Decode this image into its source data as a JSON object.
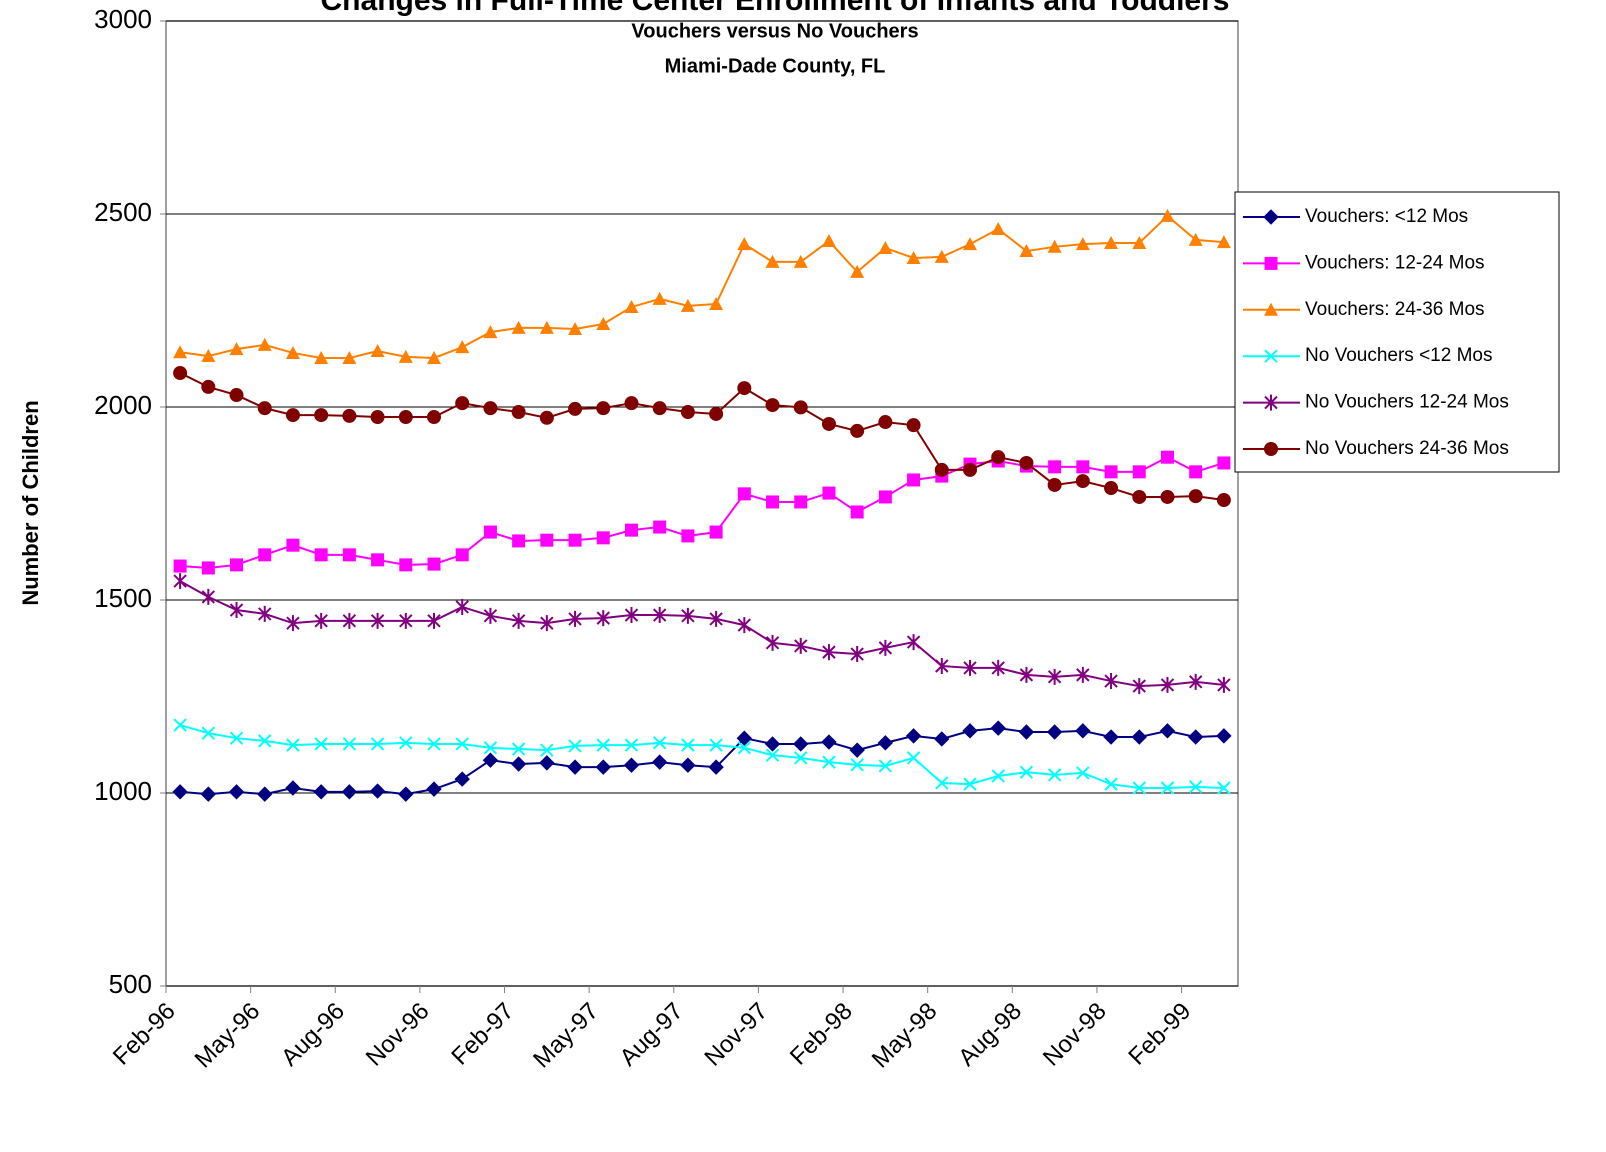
{
  "chart_data": {
    "type": "line",
    "title": "Changes in Full-Time Center Enrollment of Infants and Toddlers",
    "subtitle": [
      "Vouchers versus No Vouchers",
      "Miami-Dade County, FL"
    ],
    "y_label": "Number of Children",
    "categories": [
      "Feb-96",
      null,
      null,
      "May-96",
      null,
      null,
      "Aug-96",
      null,
      null,
      "Nov-96",
      null,
      null,
      "Feb-97",
      null,
      null,
      "May-97",
      null,
      null,
      "Aug-97",
      null,
      null,
      "Nov-97",
      null,
      null,
      "Feb-98",
      null,
      null,
      "May-98",
      null,
      null,
      "Aug-98",
      null,
      null,
      "Nov-98",
      null,
      null,
      "Feb-99",
      null
    ],
    "ylim": [
      500,
      3000
    ],
    "yticks": [
      500,
      1000,
      1500,
      2000,
      2500,
      3000
    ],
    "grid": true,
    "legend": "right",
    "series": [
      {
        "name": "Vouchers: <12 Mos",
        "color": "#000080",
        "marker": "diamond",
        "values": [
          1003,
          997,
          1003,
          997,
          1013,
          1003,
          1003,
          1005,
          997,
          1010,
          1036,
          1085,
          1075,
          1078,
          1067,
          1067,
          1072,
          1080,
          1072,
          1067,
          1142,
          1127,
          1127,
          1132,
          1111,
          1130,
          1148,
          1140,
          1161,
          1168,
          1158,
          1158,
          1161,
          1145,
          1145,
          1161,
          1145,
          1148
        ]
      },
      {
        "name": "Vouchers: 12-24 Mos",
        "color": "#ff00ff",
        "marker": "square",
        "values": [
          1588,
          1583,
          1591,
          1617,
          1642,
          1617,
          1617,
          1604,
          1591,
          1593,
          1617,
          1676,
          1653,
          1655,
          1655,
          1661,
          1681,
          1689,
          1666,
          1676,
          1775,
          1754,
          1754,
          1777,
          1728,
          1767,
          1811,
          1821,
          1852,
          1860,
          1847,
          1845,
          1845,
          1832,
          1832,
          1870,
          1832,
          1855
        ]
      },
      {
        "name": "Vouchers: 24-36 Mos",
        "color": "#ff8000",
        "marker": "triangle",
        "values": [
          2142,
          2132,
          2150,
          2161,
          2140,
          2127,
          2127,
          2145,
          2130,
          2127,
          2155,
          2194,
          2205,
          2205,
          2202,
          2215,
          2259,
          2280,
          2262,
          2267,
          2422,
          2376,
          2376,
          2430,
          2350,
          2412,
          2386,
          2389,
          2422,
          2461,
          2404,
          2415,
          2422,
          2425,
          2425,
          2495,
          2433,
          2427
        ]
      },
      {
        "name": "No Vouchers <12 Mos",
        "color": "#00ffff",
        "marker": "x",
        "values": [
          1176,
          1155,
          1142,
          1135,
          1124,
          1127,
          1127,
          1127,
          1130,
          1127,
          1127,
          1117,
          1114,
          1111,
          1122,
          1124,
          1124,
          1130,
          1124,
          1124,
          1117,
          1098,
          1091,
          1080,
          1073,
          1070,
          1091,
          1026,
          1023,
          1044,
          1054,
          1047,
          1052,
          1023,
          1013,
          1013,
          1016,
          1013
        ]
      },
      {
        "name": "No Vouchers 12-24 Mos",
        "color": "#800080",
        "marker": "star",
        "values": [
          1549,
          1508,
          1474,
          1464,
          1440,
          1446,
          1446,
          1446,
          1446,
          1446,
          1482,
          1459,
          1446,
          1440,
          1451,
          1453,
          1461,
          1461,
          1459,
          1451,
          1435,
          1389,
          1381,
          1365,
          1360,
          1376,
          1391,
          1329,
          1324,
          1324,
          1306,
          1301,
          1306,
          1290,
          1277,
          1280,
          1288,
          1280
        ]
      },
      {
        "name": "No Vouchers 24-36 Mos",
        "color": "#800000",
        "marker": "circle",
        "values": [
          2088,
          2052,
          2031,
          1997,
          1979,
          1979,
          1977,
          1974,
          1974,
          1974,
          2010,
          1997,
          1987,
          1972,
          1995,
          1997,
          2010,
          1997,
          1987,
          1982,
          2049,
          2005,
          1999,
          1956,
          1938,
          1961,
          1953,
          1837,
          1837,
          1870,
          1855,
          1798,
          1808,
          1790,
          1767,
          1767,
          1769,
          1759
        ]
      }
    ]
  }
}
